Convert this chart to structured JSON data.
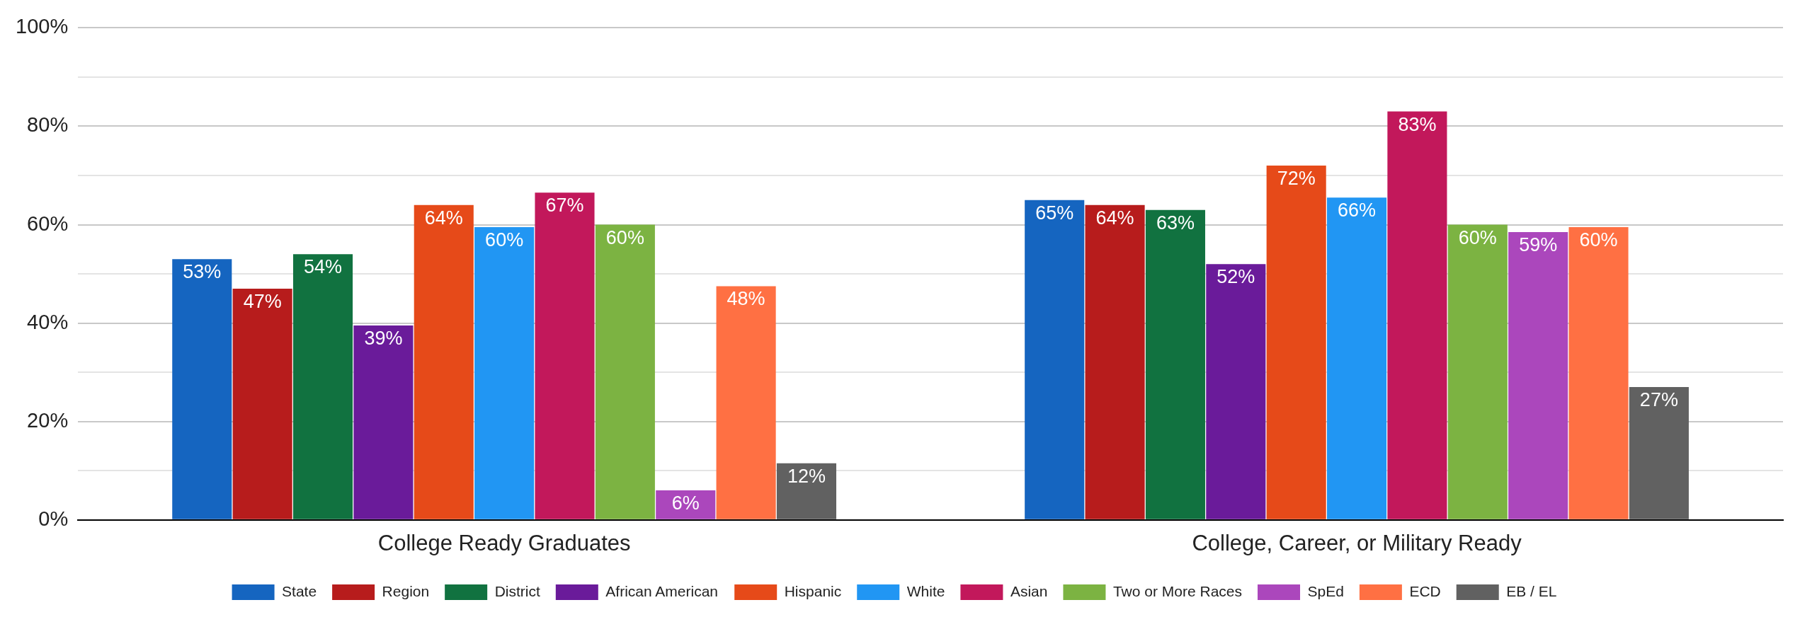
{
  "chart_data": {
    "type": "bar",
    "categories": [
      "College Ready Graduates",
      "College, Career, or Military Ready"
    ],
    "series": [
      {
        "name": "State",
        "color": "#1565c0",
        "values": [
          53,
          65
        ],
        "value_labels": [
          "53%",
          "65%"
        ]
      },
      {
        "name": "Region",
        "color": "#b71c1c",
        "values": [
          47,
          64
        ],
        "value_labels": [
          "47%",
          "64%"
        ]
      },
      {
        "name": "District",
        "color": "#117240",
        "values": [
          54,
          63
        ],
        "value_labels": [
          "54%",
          "63%"
        ]
      },
      {
        "name": "African American",
        "color": "#6a1b9a",
        "values": [
          39.5,
          52
        ],
        "value_labels": [
          "39%",
          "52%"
        ]
      },
      {
        "name": "Hispanic",
        "color": "#e64a19",
        "values": [
          64,
          72
        ],
        "value_labels": [
          "64%",
          "72%"
        ]
      },
      {
        "name": "White",
        "color": "#2196f3",
        "values": [
          59.5,
          65.5
        ],
        "value_labels": [
          "60%",
          "66%"
        ]
      },
      {
        "name": "Asian",
        "color": "#c2185b",
        "values": [
          66.5,
          83
        ],
        "value_labels": [
          "67%",
          "83%"
        ]
      },
      {
        "name": "Two or More Races",
        "color": "#7cb342",
        "values": [
          60,
          60
        ],
        "value_labels": [
          "60%",
          "60%"
        ]
      },
      {
        "name": "SpEd",
        "color": "#ab47bc",
        "values": [
          6,
          58.5
        ],
        "value_labels": [
          "6%",
          "59%"
        ]
      },
      {
        "name": "ECD",
        "color": "#ff7043",
        "values": [
          47.5,
          59.5
        ],
        "value_labels": [
          "48%",
          "60%"
        ]
      },
      {
        "name": "EB / EL",
        "color": "#616161",
        "values": [
          11.5,
          27
        ],
        "value_labels": [
          "12%",
          "27%"
        ]
      }
    ],
    "ylim": [
      0,
      100
    ],
    "yticks": [
      {
        "value": 0,
        "label": "0%"
      },
      {
        "value": 10,
        "label": null
      },
      {
        "value": 20,
        "label": "20%"
      },
      {
        "value": 30,
        "label": null
      },
      {
        "value": 40,
        "label": "40%"
      },
      {
        "value": 50,
        "label": null
      },
      {
        "value": 60,
        "label": "60%"
      },
      {
        "value": 70,
        "label": null
      },
      {
        "value": 80,
        "label": "80%"
      },
      {
        "value": 90,
        "label": null
      },
      {
        "value": 100,
        "label": "100%"
      }
    ],
    "grid": "y",
    "legend": "bottom"
  }
}
